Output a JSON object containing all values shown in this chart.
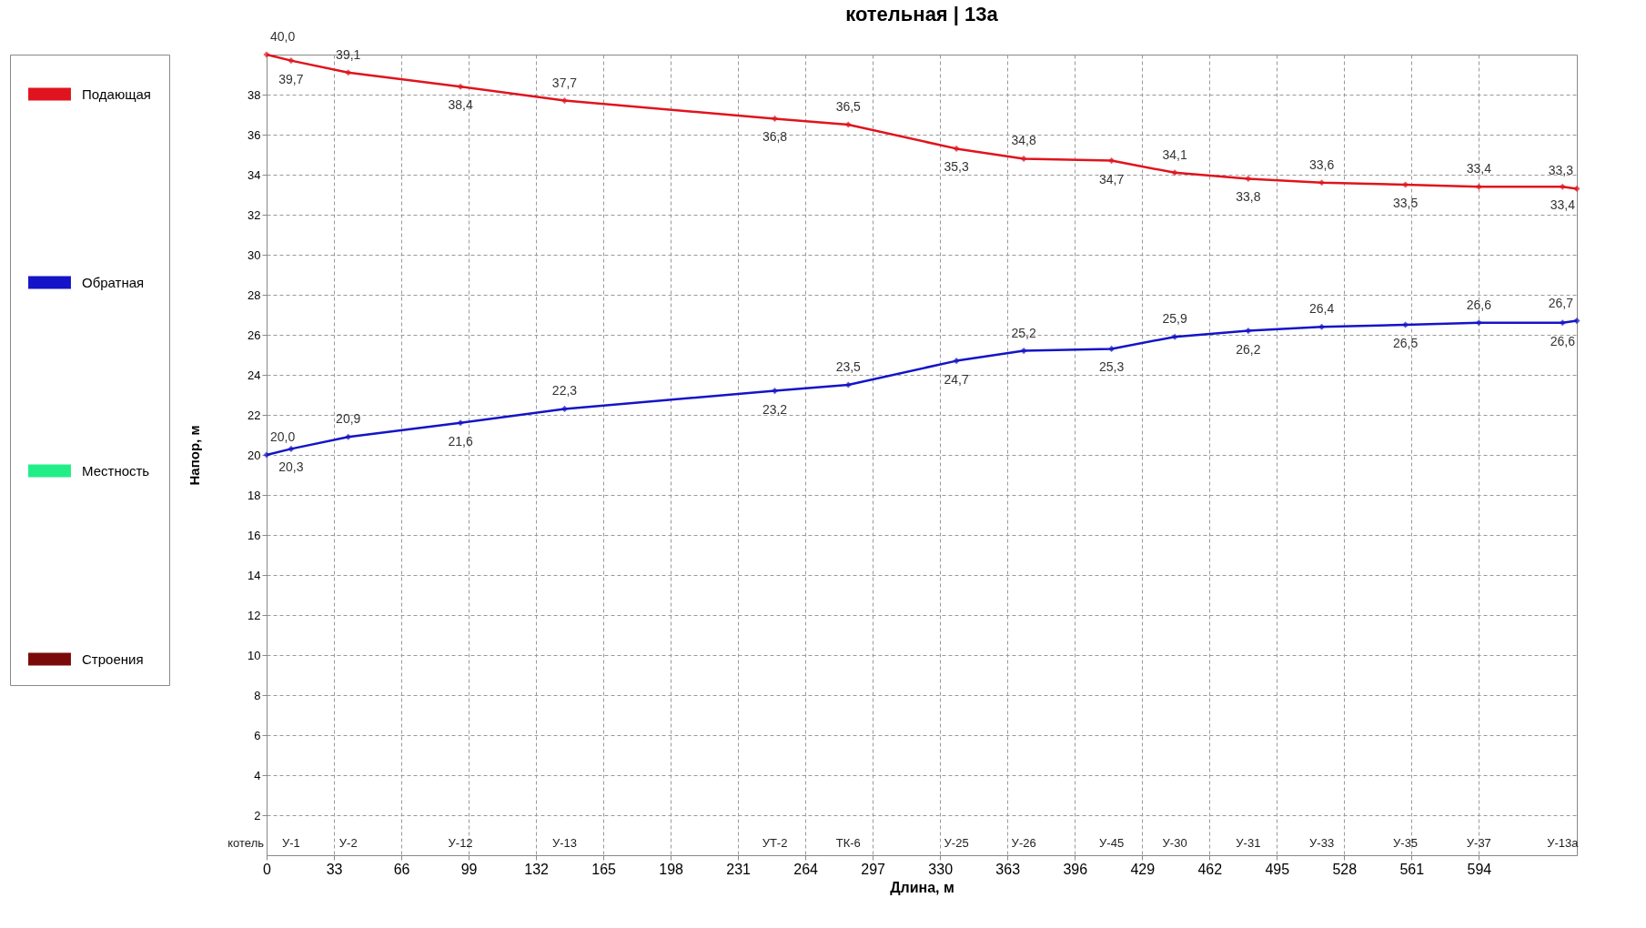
{
  "chart_data": {
    "type": "line",
    "title": "котельная | 13а",
    "xlabel": "Длина, м",
    "ylabel": "Напор, м",
    "x": [
      0,
      12,
      40,
      95,
      146,
      249,
      285,
      338,
      371,
      414,
      445,
      481,
      517,
      558,
      594,
      635,
      642
    ],
    "series": [
      {
        "name": "Подающая",
        "color": "#e0141e",
        "values": [
          40.0,
          39.7,
          39.1,
          38.4,
          37.7,
          36.8,
          36.5,
          35.3,
          34.8,
          34.7,
          34.1,
          33.8,
          33.6,
          33.5,
          33.4,
          33.4,
          33.3
        ],
        "value_labels": [
          "40,0",
          "39,7",
          "39,1",
          "38,4",
          "37,7",
          "36,8",
          "36,5",
          "35,3",
          "34,8",
          "34,7",
          "34,1",
          "33,8",
          "33,6",
          "33,5",
          "33,4",
          "33,4",
          "33,3"
        ]
      },
      {
        "name": "Обратная",
        "color": "#1414c8",
        "values": [
          20.0,
          20.3,
          20.9,
          21.6,
          22.3,
          23.2,
          23.5,
          24.7,
          25.2,
          25.3,
          25.9,
          26.2,
          26.4,
          26.5,
          26.6,
          26.6,
          26.7
        ],
        "value_labels": [
          "20,0",
          "20,3",
          "20,9",
          "21,6",
          "22,3",
          "23,2",
          "23,5",
          "24,7",
          "25,2",
          "25,3",
          "25,9",
          "26,2",
          "26,4",
          "26,5",
          "26,6",
          "26,6",
          "26,7"
        ]
      },
      {
        "name": "Местность",
        "color": "#22ee88",
        "values": [
          null,
          null,
          null,
          null,
          null,
          null,
          null,
          null,
          null,
          null,
          null,
          null,
          null,
          null,
          null,
          null,
          null
        ]
      },
      {
        "name": "Строения",
        "color": "#7a0a0a",
        "values": [
          null,
          null,
          null,
          null,
          null,
          null,
          null,
          null,
          null,
          null,
          null,
          null,
          null,
          null,
          null,
          null,
          null
        ]
      }
    ],
    "xlim": [
      0,
      642
    ],
    "xticks": [
      0,
      33,
      66,
      99,
      132,
      165,
      198,
      231,
      264,
      297,
      330,
      363,
      396,
      429,
      462,
      495,
      528,
      561,
      594
    ],
    "ylim": [
      0,
      40
    ],
    "yticks": [
      2,
      4,
      6,
      8,
      10,
      12,
      14,
      16,
      18,
      20,
      22,
      24,
      26,
      28,
      30,
      32,
      34,
      36,
      38
    ],
    "grid": true,
    "legend": "left",
    "marker": "diamond",
    "line_style": "solid",
    "annotations": [
      "котель",
      "У-1",
      "У-2",
      "У-12",
      "У-13",
      "УТ-2",
      "ТК-6",
      "У-25",
      "У-26",
      "У-45",
      "У-30",
      "У-31",
      "У-33",
      "У-35",
      "У-37",
      "У-13а"
    ]
  }
}
